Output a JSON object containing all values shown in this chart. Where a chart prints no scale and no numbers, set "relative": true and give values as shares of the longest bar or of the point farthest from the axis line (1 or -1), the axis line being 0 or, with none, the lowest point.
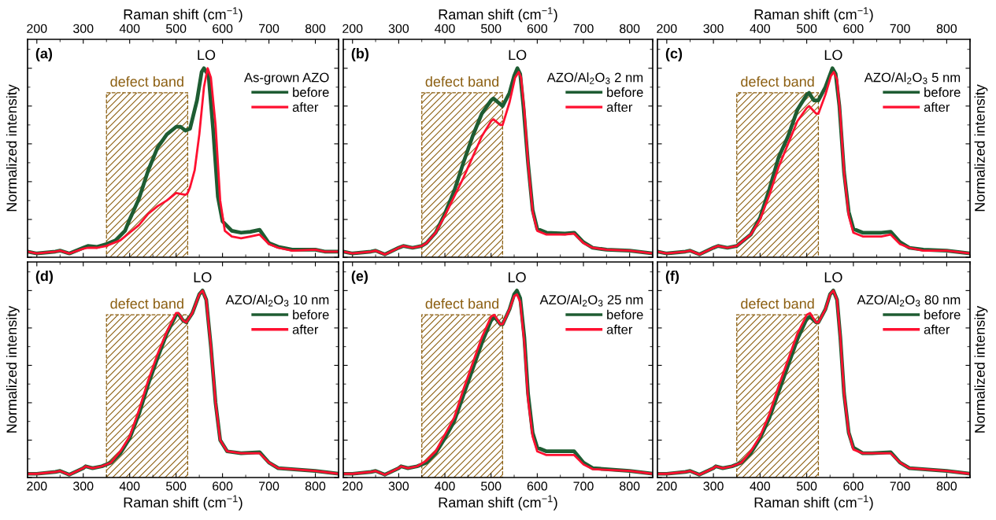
{
  "chart_data": [
    {
      "type": "line",
      "relative": true,
      "xlim": [
        180,
        850
      ],
      "xticks": [
        200,
        300,
        400,
        500,
        600,
        700,
        800
      ],
      "xlabel": "Raman shift (cm$^{−1}$)",
      "ylabel": "Normalized intensity",
      "legend_title": "As-grown AZO",
      "legend": "top right",
      "annotations": [
        "(a)",
        {
          "text": "LO",
          "x": 565,
          "y": 1
        }
      ],
      "bands": [
        {
          "axis": "x",
          "from": 350,
          "to": 525,
          "label": "defect band",
          "color": "#8b5e10"
        }
      ],
      "series": [
        {
          "name": "before",
          "color": "#1e5c32",
          "x": [
            180,
            200,
            240,
            250,
            270,
            300,
            310,
            330,
            350,
            370,
            390,
            400,
            420,
            440,
            460,
            480,
            500,
            510,
            520,
            530,
            545,
            555,
            560,
            570,
            580,
            590,
            600,
            620,
            640,
            660,
            680,
            700,
            720,
            750,
            800,
            820,
            850
          ],
          "values": [
            0.03,
            0.02,
            0.03,
            0.035,
            0.02,
            0.05,
            0.06,
            0.055,
            0.07,
            0.09,
            0.14,
            0.2,
            0.31,
            0.46,
            0.58,
            0.65,
            0.69,
            0.69,
            0.67,
            0.68,
            0.83,
            0.98,
            1.0,
            0.96,
            0.67,
            0.32,
            0.19,
            0.14,
            0.13,
            0.135,
            0.145,
            0.075,
            0.055,
            0.04,
            0.04,
            0.03,
            0.03
          ]
        },
        {
          "name": "after",
          "color": "#ff1030",
          "x": [
            180,
            200,
            240,
            250,
            270,
            300,
            310,
            330,
            350,
            380,
            400,
            420,
            440,
            460,
            480,
            500,
            520,
            525,
            530,
            540,
            550,
            560,
            568,
            575,
            585,
            595,
            605,
            620,
            640,
            660,
            680,
            700,
            720,
            750,
            800,
            820,
            850
          ],
          "values": [
            0.03,
            0.02,
            0.03,
            0.035,
            0.02,
            0.045,
            0.05,
            0.05,
            0.06,
            0.09,
            0.13,
            0.17,
            0.23,
            0.27,
            0.3,
            0.34,
            0.33,
            0.34,
            0.37,
            0.46,
            0.65,
            0.9,
            1.0,
            0.95,
            0.7,
            0.3,
            0.14,
            0.11,
            0.1,
            0.11,
            0.12,
            0.07,
            0.05,
            0.035,
            0.04,
            0.03,
            0.03
          ]
        }
      ]
    },
    {
      "type": "line",
      "relative": true,
      "xlim": [
        180,
        850
      ],
      "xticks": [
        200,
        300,
        400,
        500,
        600,
        700,
        800
      ],
      "xlabel": "Raman shift (cm$^{−1}$)",
      "legend_title": "AZO/Al$_{2}$O$_{3}$ 2 nm",
      "legend": "top right",
      "annotations": [
        "(b)",
        {
          "text": "LO",
          "x": 557,
          "y": 1
        }
      ],
      "bands": [
        {
          "axis": "x",
          "from": 350,
          "to": 525,
          "label": "defect band",
          "color": "#8b5e10"
        }
      ],
      "series": [
        {
          "name": "before",
          "color": "#1e5c32",
          "x": [
            180,
            200,
            240,
            250,
            270,
            300,
            310,
            330,
            350,
            360,
            380,
            400,
            420,
            440,
            460,
            480,
            500,
            505,
            515,
            525,
            540,
            550,
            557,
            563,
            570,
            580,
            590,
            600,
            620,
            660,
            680,
            700,
            720,
            750,
            800,
            850
          ],
          "values": [
            0.03,
            0.02,
            0.03,
            0.035,
            0.015,
            0.05,
            0.06,
            0.05,
            0.06,
            0.075,
            0.13,
            0.23,
            0.35,
            0.5,
            0.64,
            0.76,
            0.83,
            0.84,
            0.82,
            0.8,
            0.87,
            0.96,
            1.0,
            0.97,
            0.8,
            0.5,
            0.25,
            0.15,
            0.13,
            0.125,
            0.13,
            0.08,
            0.05,
            0.04,
            0.035,
            0.02
          ]
        },
        {
          "name": "after",
          "color": "#ff1030",
          "x": [
            180,
            200,
            240,
            250,
            270,
            300,
            310,
            330,
            350,
            360,
            380,
            400,
            420,
            440,
            460,
            480,
            500,
            505,
            520,
            525,
            540,
            552,
            560,
            565,
            572,
            580,
            590,
            600,
            620,
            660,
            680,
            700,
            720,
            750,
            800,
            850
          ],
          "values": [
            0.03,
            0.02,
            0.03,
            0.035,
            0.015,
            0.05,
            0.06,
            0.05,
            0.06,
            0.075,
            0.13,
            0.22,
            0.32,
            0.42,
            0.53,
            0.64,
            0.72,
            0.73,
            0.7,
            0.7,
            0.82,
            0.95,
            0.98,
            0.95,
            0.78,
            0.5,
            0.24,
            0.14,
            0.12,
            0.12,
            0.125,
            0.075,
            0.05,
            0.04,
            0.035,
            0.02
          ]
        }
      ]
    },
    {
      "type": "line",
      "relative": true,
      "xlim": [
        180,
        850
      ],
      "xticks": [
        200,
        300,
        400,
        500,
        600,
        700,
        800
      ],
      "xlabel": "Raman shift (cm$^{−1}$)",
      "ylabel": "Normalized intensity",
      "legend_title": "AZO/Al$_{2}$O$_{3}$ 5 nm",
      "legend": "top right",
      "annotations": [
        "(c)",
        {
          "text": "LO",
          "x": 557,
          "y": 1
        }
      ],
      "bands": [
        {
          "axis": "x",
          "from": 350,
          "to": 525,
          "label": "defect band",
          "color": "#8b5e10"
        }
      ],
      "series": [
        {
          "name": "before",
          "color": "#1e5c32",
          "x": [
            180,
            200,
            240,
            250,
            270,
            300,
            310,
            330,
            350,
            380,
            400,
            420,
            440,
            460,
            480,
            500,
            505,
            515,
            525,
            540,
            555,
            562,
            570,
            580,
            590,
            600,
            620,
            660,
            680,
            700,
            720,
            750,
            800,
            850
          ],
          "values": [
            0.03,
            0.02,
            0.03,
            0.035,
            0.015,
            0.05,
            0.06,
            0.05,
            0.06,
            0.12,
            0.21,
            0.36,
            0.53,
            0.64,
            0.78,
            0.86,
            0.87,
            0.83,
            0.83,
            0.9,
            1.0,
            0.97,
            0.8,
            0.45,
            0.24,
            0.15,
            0.13,
            0.13,
            0.135,
            0.08,
            0.05,
            0.04,
            0.035,
            0.02
          ]
        },
        {
          "name": "after",
          "color": "#ff1030",
          "x": [
            180,
            200,
            240,
            250,
            270,
            300,
            310,
            330,
            350,
            380,
            400,
            420,
            440,
            460,
            480,
            500,
            505,
            520,
            525,
            540,
            552,
            558,
            565,
            572,
            580,
            590,
            600,
            620,
            660,
            680,
            700,
            720,
            750,
            800,
            850
          ],
          "values": [
            0.03,
            0.02,
            0.03,
            0.035,
            0.015,
            0.05,
            0.06,
            0.05,
            0.06,
            0.12,
            0.2,
            0.33,
            0.48,
            0.6,
            0.72,
            0.79,
            0.8,
            0.76,
            0.76,
            0.86,
            0.96,
            0.98,
            0.94,
            0.75,
            0.45,
            0.22,
            0.13,
            0.11,
            0.11,
            0.12,
            0.07,
            0.05,
            0.035,
            0.035,
            0.02
          ]
        }
      ]
    },
    {
      "type": "line",
      "relative": true,
      "xlim": [
        180,
        850
      ],
      "xticks": [
        200,
        300,
        400,
        500,
        600,
        700,
        800
      ],
      "xlabel": "Raman shift (cm$^{−1}$)",
      "ylabel": "Normalized intensity",
      "legend_title": "AZO/Al$_{2}$O$_{3}$ 10 nm",
      "legend": "top right",
      "annotations": [
        "(d)",
        {
          "text": "LO",
          "x": 557,
          "y": 1
        }
      ],
      "bands": [
        {
          "axis": "x",
          "from": 350,
          "to": 525,
          "label": "defect band",
          "color": "#8b5e10"
        }
      ],
      "series": [
        {
          "name": "before",
          "color": "#1e5c32",
          "x": [
            180,
            200,
            240,
            250,
            270,
            300,
            305,
            320,
            340,
            360,
            380,
            400,
            420,
            440,
            460,
            480,
            500,
            505,
            515,
            522,
            535,
            550,
            557,
            565,
            575,
            585,
            595,
            610,
            640,
            680,
            700,
            720,
            800,
            850
          ],
          "values": [
            0.02,
            0.02,
            0.03,
            0.035,
            0.015,
            0.05,
            0.06,
            0.05,
            0.06,
            0.08,
            0.13,
            0.21,
            0.34,
            0.5,
            0.64,
            0.77,
            0.87,
            0.875,
            0.84,
            0.83,
            0.88,
            0.98,
            1.0,
            0.95,
            0.7,
            0.4,
            0.2,
            0.14,
            0.13,
            0.135,
            0.08,
            0.05,
            0.035,
            0.02
          ]
        },
        {
          "name": "after",
          "color": "#ff1030",
          "x": [
            180,
            200,
            240,
            250,
            270,
            300,
            305,
            320,
            340,
            360,
            380,
            400,
            420,
            440,
            460,
            480,
            500,
            505,
            515,
            522,
            535,
            550,
            557,
            565,
            575,
            585,
            595,
            610,
            640,
            680,
            700,
            720,
            800,
            850
          ],
          "values": [
            0.02,
            0.02,
            0.03,
            0.035,
            0.015,
            0.05,
            0.06,
            0.05,
            0.06,
            0.08,
            0.14,
            0.22,
            0.36,
            0.52,
            0.66,
            0.78,
            0.88,
            0.88,
            0.84,
            0.83,
            0.88,
            0.98,
            1.0,
            0.95,
            0.7,
            0.4,
            0.2,
            0.14,
            0.13,
            0.13,
            0.08,
            0.05,
            0.035,
            0.02
          ]
        }
      ]
    },
    {
      "type": "line",
      "relative": true,
      "xlim": [
        180,
        850
      ],
      "xticks": [
        200,
        300,
        400,
        500,
        600,
        700,
        800
      ],
      "xlabel": "Raman shift (cm$^{−1}$)",
      "legend_title": "AZO/Al$_{2}$O$_{3}$ 25 nm",
      "legend": "top right",
      "annotations": [
        "(e)",
        {
          "text": "LO",
          "x": 556,
          "y": 1
        }
      ],
      "bands": [
        {
          "axis": "x",
          "from": 350,
          "to": 525,
          "label": "defect band",
          "color": "#8b5e10"
        }
      ],
      "series": [
        {
          "name": "before",
          "color": "#1e5c32",
          "x": [
            180,
            200,
            240,
            250,
            270,
            300,
            305,
            320,
            340,
            360,
            380,
            400,
            420,
            440,
            460,
            480,
            500,
            507,
            520,
            525,
            540,
            550,
            556,
            563,
            572,
            580,
            590,
            600,
            620,
            640,
            680,
            700,
            720,
            800,
            850
          ],
          "values": [
            0.02,
            0.02,
            0.03,
            0.035,
            0.015,
            0.05,
            0.06,
            0.05,
            0.06,
            0.08,
            0.13,
            0.21,
            0.3,
            0.44,
            0.58,
            0.72,
            0.84,
            0.86,
            0.82,
            0.82,
            0.9,
            0.98,
            1.0,
            0.96,
            0.75,
            0.45,
            0.24,
            0.16,
            0.14,
            0.14,
            0.14,
            0.08,
            0.05,
            0.035,
            0.02
          ]
        },
        {
          "name": "after",
          "color": "#ff1030",
          "x": [
            180,
            200,
            240,
            250,
            270,
            300,
            305,
            320,
            340,
            360,
            380,
            400,
            420,
            440,
            460,
            480,
            500,
            507,
            520,
            525,
            540,
            550,
            556,
            563,
            572,
            580,
            590,
            600,
            620,
            640,
            680,
            700,
            720,
            800,
            850
          ],
          "values": [
            0.02,
            0.02,
            0.03,
            0.035,
            0.015,
            0.05,
            0.06,
            0.05,
            0.06,
            0.09,
            0.14,
            0.23,
            0.32,
            0.47,
            0.61,
            0.75,
            0.86,
            0.87,
            0.82,
            0.82,
            0.9,
            0.97,
            0.98,
            0.94,
            0.72,
            0.42,
            0.22,
            0.14,
            0.12,
            0.12,
            0.12,
            0.07,
            0.045,
            0.035,
            0.02
          ]
        }
      ]
    },
    {
      "type": "line",
      "relative": true,
      "xlim": [
        180,
        850
      ],
      "xticks": [
        200,
        300,
        400,
        500,
        600,
        700,
        800
      ],
      "xlabel": "Raman shift (cm$^{−1}$)",
      "ylabel": "Normalized intensity",
      "legend_title": "AZO/Al$_{2}$O$_{3}$ 80 nm",
      "legend": "top right",
      "annotations": [
        "(f)",
        {
          "text": "LO",
          "x": 557,
          "y": 1
        }
      ],
      "bands": [
        {
          "axis": "x",
          "from": 350,
          "to": 525,
          "label": "defect band",
          "color": "#8b5e10"
        }
      ],
      "series": [
        {
          "name": "before",
          "color": "#1e5c32",
          "x": [
            180,
            200,
            240,
            250,
            270,
            300,
            305,
            320,
            340,
            360,
            380,
            400,
            420,
            440,
            460,
            480,
            500,
            507,
            520,
            525,
            540,
            550,
            557,
            565,
            572,
            580,
            590,
            600,
            620,
            640,
            680,
            700,
            720,
            800,
            850
          ],
          "values": [
            0.02,
            0.02,
            0.03,
            0.035,
            0.015,
            0.05,
            0.06,
            0.05,
            0.06,
            0.08,
            0.13,
            0.21,
            0.32,
            0.46,
            0.6,
            0.74,
            0.85,
            0.86,
            0.83,
            0.83,
            0.9,
            0.98,
            1.0,
            0.95,
            0.75,
            0.45,
            0.24,
            0.16,
            0.13,
            0.13,
            0.135,
            0.08,
            0.05,
            0.035,
            0.02
          ]
        },
        {
          "name": "after",
          "color": "#ff1030",
          "x": [
            180,
            200,
            240,
            250,
            270,
            300,
            305,
            320,
            340,
            360,
            380,
            400,
            420,
            440,
            460,
            480,
            500,
            507,
            520,
            525,
            540,
            550,
            557,
            565,
            572,
            580,
            590,
            600,
            620,
            640,
            680,
            700,
            720,
            800,
            850
          ],
          "values": [
            0.02,
            0.02,
            0.03,
            0.035,
            0.015,
            0.05,
            0.06,
            0.05,
            0.06,
            0.08,
            0.14,
            0.22,
            0.34,
            0.49,
            0.63,
            0.77,
            0.87,
            0.88,
            0.83,
            0.83,
            0.9,
            0.98,
            1.0,
            0.95,
            0.75,
            0.45,
            0.24,
            0.15,
            0.13,
            0.13,
            0.13,
            0.08,
            0.05,
            0.035,
            0.02
          ]
        }
      ]
    }
  ]
}
